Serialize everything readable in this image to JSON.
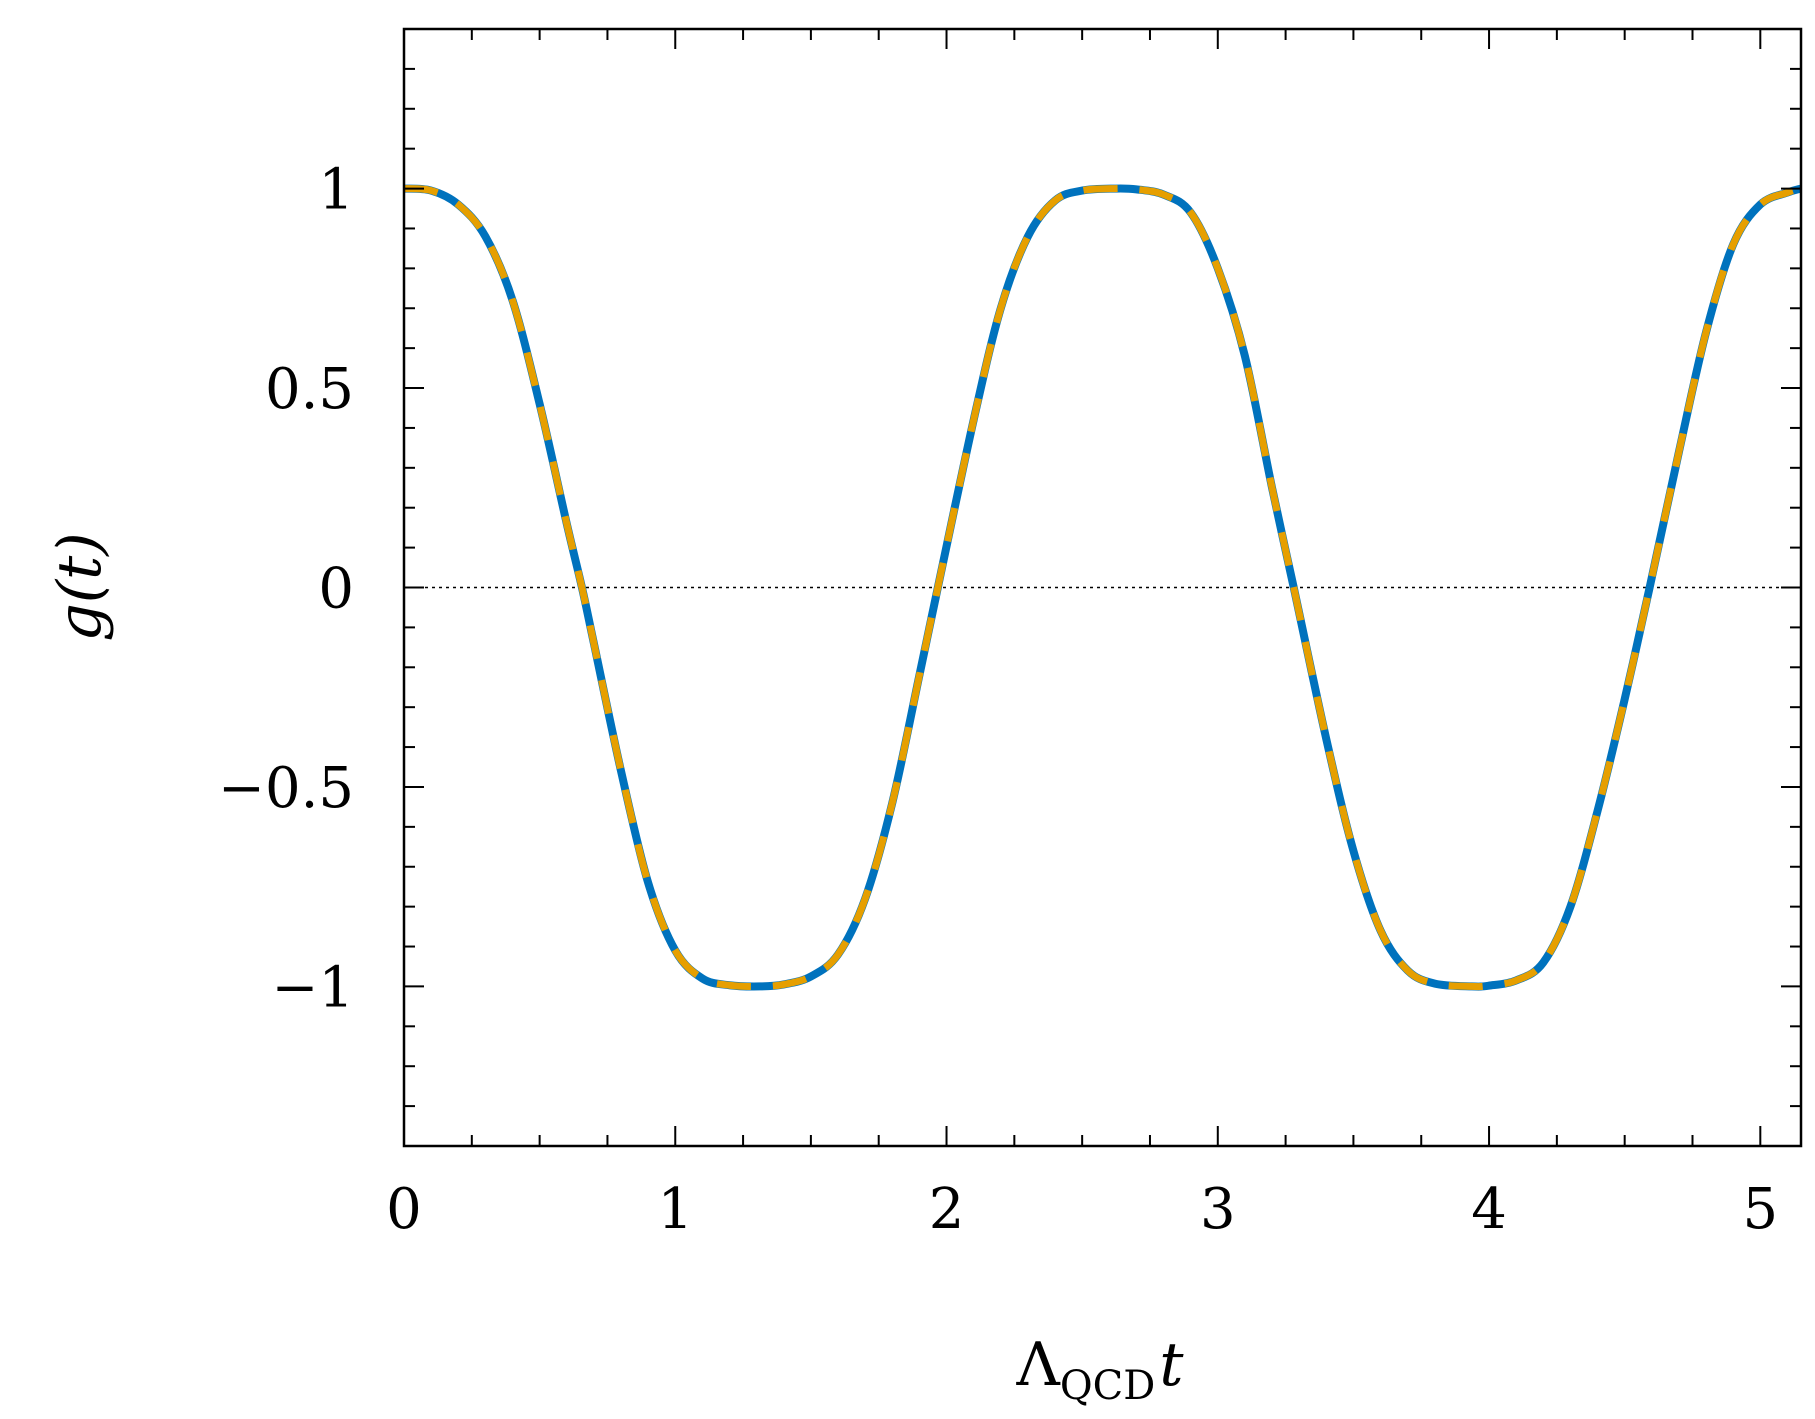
{
  "chart_data": {
    "type": "line",
    "title": "",
    "xlabel": "Λ",
    "xlabel_sub": "QCD",
    "xlabel_var": "t",
    "ylabel": "g(t)",
    "xlim": [
      0,
      5.15
    ],
    "ylim": [
      -1.4,
      1.4
    ],
    "x_ticks": [
      0,
      1,
      2,
      3,
      4,
      5
    ],
    "x_tick_labels": [
      "0",
      "1",
      "2",
      "3",
      "4",
      "5"
    ],
    "y_ticks": [
      -1,
      -0.5,
      0,
      0.5,
      1
    ],
    "y_tick_labels": [
      "−1",
      "−0.5",
      "0",
      "0.5",
      "1"
    ],
    "grid": false,
    "reference_line": {
      "y": 0,
      "style": "dotted"
    },
    "series": [
      {
        "style": "solid",
        "color": "#0072bd",
        "x": [
          0,
          0.1,
          0.2,
          0.3,
          0.4,
          0.5,
          0.6,
          0.656,
          0.7,
          0.8,
          0.9,
          1.0,
          1.1,
          1.2,
          1.312,
          1.4,
          1.5,
          1.6,
          1.7,
          1.8,
          1.9,
          1.968,
          2.1,
          2.2,
          2.3,
          2.4,
          2.5,
          2.624,
          2.7,
          2.8,
          2.9,
          3.0,
          3.1,
          3.2,
          3.28,
          3.4,
          3.5,
          3.6,
          3.7,
          3.8,
          3.936,
          4.0,
          4.1,
          4.2,
          4.3,
          4.4,
          4.5,
          4.592,
          4.7,
          4.8,
          4.9,
          5.0,
          5.1,
          5.15
        ],
        "y": [
          1.0,
          0.995,
          0.96,
          0.88,
          0.72,
          0.46,
          0.16,
          0.0,
          -0.14,
          -0.46,
          -0.74,
          -0.91,
          -0.98,
          -0.997,
          -1.0,
          -0.995,
          -0.975,
          -0.92,
          -0.78,
          -0.54,
          -0.22,
          0.0,
          0.42,
          0.7,
          0.88,
          0.97,
          0.995,
          1.0,
          0.998,
          0.985,
          0.94,
          0.8,
          0.58,
          0.25,
          0.0,
          -0.38,
          -0.66,
          -0.86,
          -0.96,
          -0.993,
          -1.0,
          -0.998,
          -0.985,
          -0.94,
          -0.8,
          -0.56,
          -0.28,
          0.0,
          0.34,
          0.64,
          0.86,
          0.96,
          0.99,
          1.0
        ]
      },
      {
        "style": "dashed",
        "color": "#e69f00",
        "x": [
          0,
          0.1,
          0.2,
          0.3,
          0.4,
          0.5,
          0.6,
          0.656,
          0.7,
          0.8,
          0.9,
          1.0,
          1.1,
          1.2,
          1.312,
          1.4,
          1.5,
          1.6,
          1.7,
          1.8,
          1.9,
          1.968,
          2.1,
          2.2,
          2.3,
          2.4,
          2.5,
          2.624,
          2.7,
          2.8,
          2.9,
          3.0,
          3.1,
          3.2,
          3.28,
          3.4,
          3.5,
          3.6,
          3.7,
          3.8,
          3.936,
          4.0,
          4.1,
          4.2,
          4.3,
          4.4,
          4.5,
          4.592,
          4.7,
          4.8,
          4.9,
          5.0,
          5.1,
          5.15
        ],
        "y": [
          1.0,
          0.995,
          0.96,
          0.88,
          0.72,
          0.46,
          0.16,
          0.0,
          -0.14,
          -0.46,
          -0.74,
          -0.91,
          -0.98,
          -0.997,
          -1.0,
          -0.995,
          -0.975,
          -0.92,
          -0.78,
          -0.54,
          -0.22,
          0.0,
          0.42,
          0.7,
          0.88,
          0.97,
          0.995,
          1.0,
          0.998,
          0.985,
          0.94,
          0.8,
          0.58,
          0.25,
          0.0,
          -0.38,
          -0.66,
          -0.86,
          -0.96,
          -0.993,
          -1.0,
          -0.998,
          -0.985,
          -0.94,
          -0.8,
          -0.56,
          -0.28,
          0.0,
          0.34,
          0.64,
          0.86,
          0.96,
          0.99,
          1.0
        ]
      }
    ]
  }
}
